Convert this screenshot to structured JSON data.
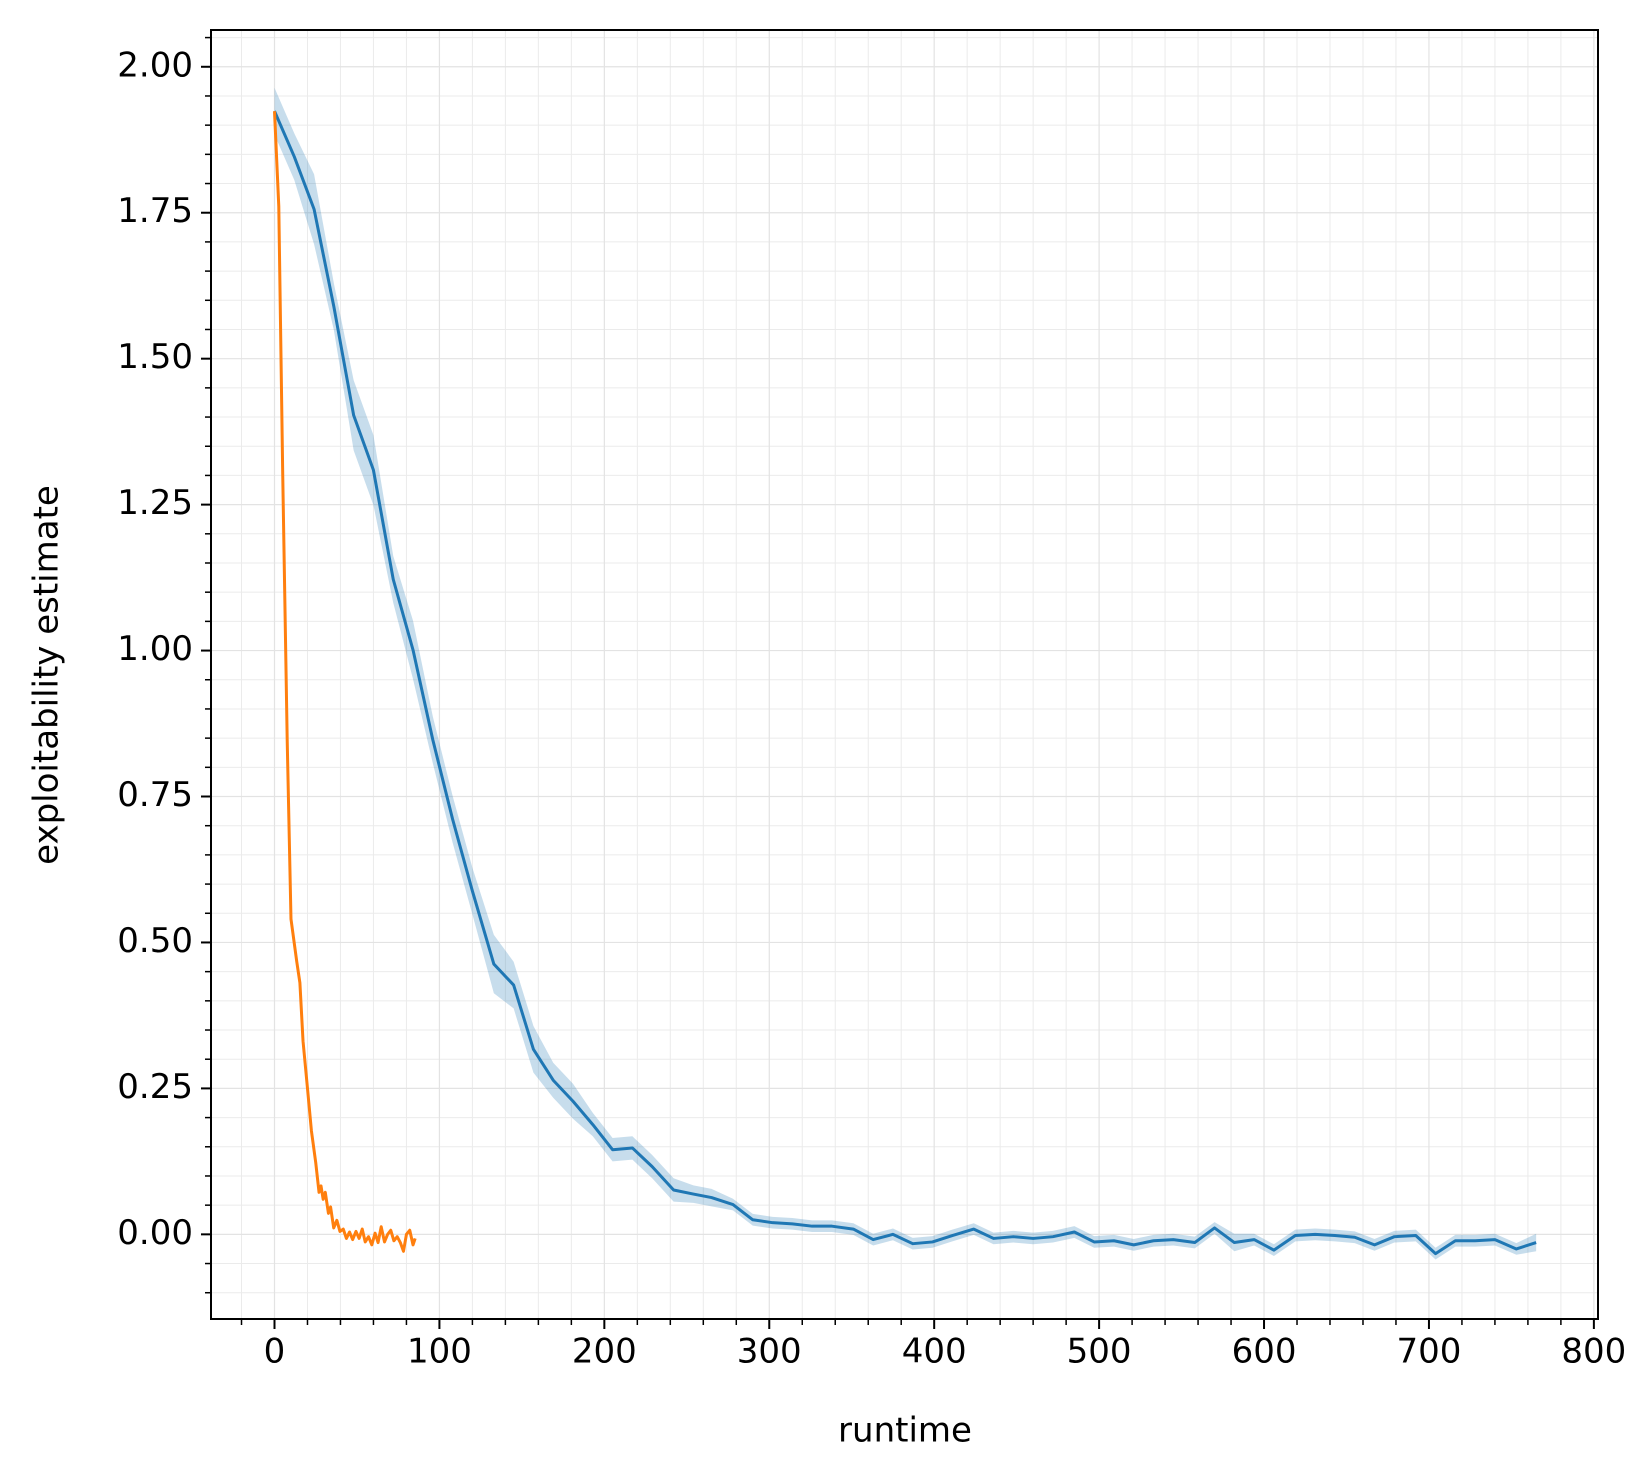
{
  "chart_data": {
    "type": "line",
    "xlabel": "runtime",
    "ylabel": "exploitability estimate",
    "xlim": [
      -38.5,
      802.5
    ],
    "ylim": [
      -0.145,
      2.063
    ],
    "xticks": [
      0,
      100,
      200,
      300,
      400,
      500,
      600,
      700,
      800
    ],
    "yticks": [
      {
        "value": 0,
        "label": "0.00"
      },
      {
        "value": 0.25,
        "label": "0.25"
      },
      {
        "value": 0.5,
        "label": "0.50"
      },
      {
        "value": 0.75,
        "label": "0.75"
      },
      {
        "value": 1,
        "label": "1.00"
      },
      {
        "value": 1.25,
        "label": "1.25"
      },
      {
        "value": 1.5,
        "label": "1.50"
      },
      {
        "value": 1.75,
        "label": "1.75"
      },
      {
        "value": 2,
        "label": "2.00"
      }
    ],
    "grid": true,
    "minor_divisions": 5,
    "series": [
      {
        "color": "#1f77b4",
        "x": [
          0,
          12,
          24,
          36,
          48,
          60,
          72,
          84,
          96,
          108,
          120,
          133,
          145,
          157,
          169,
          181,
          193,
          205,
          217,
          229,
          242,
          254,
          265,
          278,
          290,
          302,
          314,
          326,
          338,
          351,
          363,
          375,
          387,
          399,
          411,
          424,
          436,
          448,
          460,
          472,
          485,
          497,
          509,
          521,
          533,
          545,
          558,
          570,
          582,
          594,
          606,
          619,
          631,
          643,
          655,
          667,
          679,
          692,
          704,
          716,
          728,
          740,
          753,
          765
        ],
        "values": [
          1.924,
          1.846,
          1.756,
          1.589,
          1.403,
          1.309,
          1.122,
          1.001,
          0.847,
          0.711,
          0.588,
          0.463,
          0.427,
          0.317,
          0.264,
          0.228,
          0.188,
          0.145,
          0.148,
          0.116,
          0.076,
          0.069,
          0.063,
          0.051,
          0.025,
          0.02,
          0.018,
          0.014,
          0.014,
          0.009,
          -0.009,
          0.0,
          -0.016,
          -0.013,
          -0.002,
          0.009,
          -0.007,
          -0.004,
          -0.007,
          -0.004,
          0.004,
          -0.013,
          -0.011,
          -0.018,
          -0.011,
          -0.009,
          -0.014,
          0.011,
          -0.014,
          -0.009,
          -0.027,
          -0.002,
          0.0,
          -0.002,
          -0.005,
          -0.018,
          -0.004,
          -0.002,
          -0.033,
          -0.011,
          -0.011,
          -0.009,
          -0.025,
          -0.014
        ],
        "error": [
          0.04,
          0.04,
          0.06,
          0.04,
          0.06,
          0.06,
          0.04,
          0.05,
          0.04,
          0.04,
          0.04,
          0.05,
          0.04,
          0.04,
          0.03,
          0.03,
          0.02,
          0.02,
          0.02,
          0.02,
          0.02,
          0.015,
          0.015,
          0.01,
          0.01,
          0.01,
          0.01,
          0.01,
          0.01,
          0.01,
          0.01,
          0.01,
          0.01,
          0.01,
          0.01,
          0.01,
          0.01,
          0.01,
          0.01,
          0.01,
          0.01,
          0.01,
          0.01,
          0.01,
          0.01,
          0.01,
          0.01,
          0.01,
          0.015,
          0.01,
          0.01,
          0.01,
          0.01,
          0.01,
          0.01,
          0.01,
          0.01,
          0.01,
          0.01,
          0.01,
          0.01,
          0.01,
          0.01,
          0.015
        ]
      },
      {
        "color": "#ff7f0e",
        "x": [
          0,
          2.6,
          5,
          7.7,
          10,
          13.5,
          15.4,
          17.3,
          20,
          22.4,
          25,
          27,
          28.2,
          29.5,
          30.8,
          32.7,
          34,
          35.9,
          37.8,
          39.7,
          41.7,
          43.6,
          45.5,
          47.4,
          49.4,
          51.3,
          53.2,
          55,
          57,
          59,
          61,
          62.8,
          64.7,
          66.7,
          68.6,
          70.5,
          72.4,
          74.4,
          76.3,
          78.2,
          80,
          82,
          84,
          85.3
        ],
        "values": [
          1.924,
          1.761,
          1.3,
          0.847,
          0.54,
          0.467,
          0.431,
          0.331,
          0.25,
          0.177,
          0.123,
          0.072,
          0.083,
          0.06,
          0.072,
          0.036,
          0.047,
          0.011,
          0.024,
          0.005,
          0.009,
          -0.007,
          0.004,
          -0.009,
          0.005,
          -0.007,
          0.009,
          -0.013,
          -0.004,
          -0.018,
          0.002,
          -0.014,
          0.013,
          -0.013,
          0,
          0.007,
          -0.011,
          -0.004,
          -0.014,
          -0.029,
          0,
          0.007,
          -0.018,
          -0.007
        ]
      }
    ]
  }
}
